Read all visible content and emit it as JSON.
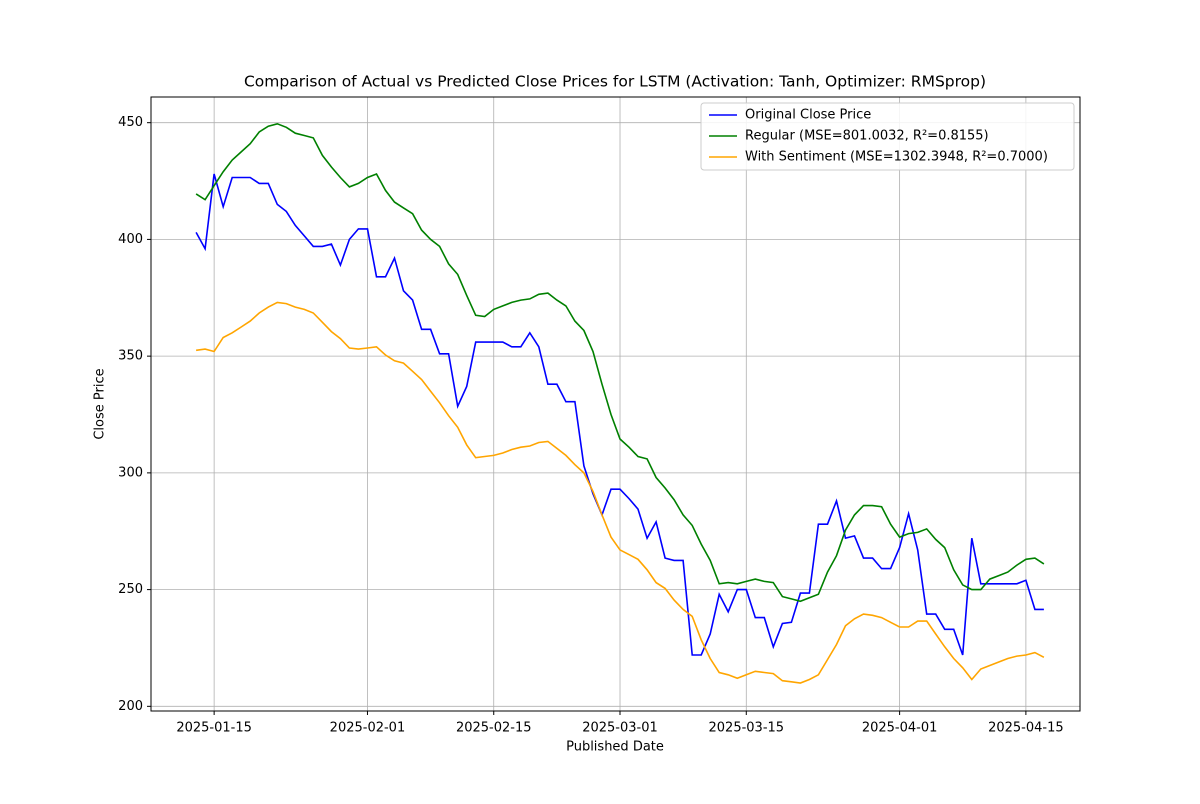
{
  "chart_data": {
    "type": "line",
    "title": "Comparison of Actual vs Predicted Close Prices for LSTM (Activation: Tanh, Optimizer: RMSprop)",
    "xlabel": "Published Date",
    "ylabel": "Close Price",
    "x": [
      "2025-01-13",
      "2025-01-14",
      "2025-01-15",
      "2025-01-16",
      "2025-01-17",
      "2025-01-18",
      "2025-01-19",
      "2025-01-20",
      "2025-01-21",
      "2025-01-22",
      "2025-01-23",
      "2025-01-24",
      "2025-01-25",
      "2025-01-26",
      "2025-01-27",
      "2025-01-28",
      "2025-01-29",
      "2025-01-30",
      "2025-01-31",
      "2025-02-01",
      "2025-02-02",
      "2025-02-03",
      "2025-02-04",
      "2025-02-05",
      "2025-02-06",
      "2025-02-07",
      "2025-02-08",
      "2025-02-09",
      "2025-02-10",
      "2025-02-11",
      "2025-02-12",
      "2025-02-13",
      "2025-02-14",
      "2025-02-15",
      "2025-02-16",
      "2025-02-17",
      "2025-02-18",
      "2025-02-19",
      "2025-02-20",
      "2025-02-21",
      "2025-02-22",
      "2025-02-23",
      "2025-02-24",
      "2025-02-25",
      "2025-02-26",
      "2025-02-27",
      "2025-02-28",
      "2025-03-01",
      "2025-03-02",
      "2025-03-03",
      "2025-03-04",
      "2025-03-05",
      "2025-03-06",
      "2025-03-07",
      "2025-03-08",
      "2025-03-09",
      "2025-03-10",
      "2025-03-11",
      "2025-03-12",
      "2025-03-13",
      "2025-03-14",
      "2025-03-15",
      "2025-03-16",
      "2025-03-17",
      "2025-03-18",
      "2025-03-19",
      "2025-03-20",
      "2025-03-21",
      "2025-03-22",
      "2025-03-23",
      "2025-03-24",
      "2025-03-25",
      "2025-03-26",
      "2025-03-27",
      "2025-03-28",
      "2025-03-29",
      "2025-03-30",
      "2025-03-31",
      "2025-04-01",
      "2025-04-02",
      "2025-04-03",
      "2025-04-04",
      "2025-04-05",
      "2025-04-06",
      "2025-04-07",
      "2025-04-08",
      "2025-04-09",
      "2025-04-10",
      "2025-04-11",
      "2025-04-12",
      "2025-04-13",
      "2025-04-14",
      "2025-04-15",
      "2025-04-16",
      "2025-04-17"
    ],
    "series": [
      {
        "name": "Original Close Price",
        "color": "#0000ff",
        "values": [
          403,
          396,
          428,
          414,
          426.5,
          426.5,
          426.5,
          424,
          424,
          415,
          412,
          406,
          401.5,
          397,
          397,
          398,
          389,
          400,
          404.5,
          404.5,
          384,
          384,
          392,
          378,
          374,
          361.5,
          361.5,
          351,
          351,
          328.5,
          337,
          356,
          356,
          356,
          356,
          354,
          354,
          360,
          354,
          338,
          338,
          330.5,
          330.5,
          303,
          291,
          282,
          293,
          293,
          289,
          284.5,
          272,
          279,
          263.5,
          262.5,
          262.5,
          222,
          222,
          231,
          248,
          240.5,
          250,
          250,
          238,
          238,
          225.5,
          235.5,
          236,
          248.5,
          248.5,
          278,
          278,
          288,
          272,
          273,
          263.5,
          263.5,
          259,
          259,
          268,
          282.5,
          267,
          239.5,
          239.5,
          233,
          233,
          222,
          272,
          252.5,
          252.5,
          252.5,
          252.5,
          252.5,
          254,
          241.5,
          241.5
        ]
      },
      {
        "name": "Regular (MSE=801.0032, R²=0.8155)",
        "color": "#008000",
        "values": [
          419.5,
          417,
          423,
          429,
          434,
          437.5,
          441,
          446,
          448.5,
          449.5,
          448,
          445.5,
          444.5,
          443.5,
          436,
          431,
          426.5,
          422.5,
          424,
          426.5,
          428,
          421,
          416,
          413.5,
          411,
          404,
          400,
          397,
          389.5,
          385,
          376,
          367.5,
          367,
          370,
          371.5,
          373,
          374,
          374.5,
          376.5,
          377,
          374,
          371.5,
          365,
          361,
          352,
          338,
          325,
          314.5,
          311,
          307,
          306,
          298,
          293.5,
          288.5,
          282,
          277.5,
          269.5,
          262.5,
          252.5,
          253,
          252.5,
          253.5,
          254.5,
          253.5,
          253,
          247,
          246,
          245,
          246.5,
          248,
          257.5,
          264.5,
          275.5,
          282,
          286,
          286,
          285.5,
          278,
          272.5,
          274,
          274.5,
          276,
          271.5,
          268,
          258.5,
          252,
          250,
          250,
          254.5,
          256,
          257.5,
          260.5,
          263,
          263.5,
          261
        ]
      },
      {
        "name": "With Sentiment (MSE=1302.3948, R²=0.7000)",
        "color": "#ffa500",
        "values": [
          352.5,
          353,
          352,
          358,
          360,
          362.5,
          365,
          368.5,
          371,
          373,
          372.5,
          371,
          370,
          368.5,
          364.5,
          360.5,
          357.5,
          353.5,
          353,
          353.5,
          354,
          350.5,
          348,
          347,
          343.5,
          340,
          335,
          330,
          324.5,
          319.5,
          312,
          306.5,
          307,
          307.5,
          308.5,
          310,
          311,
          311.5,
          313,
          313.5,
          310.5,
          307.5,
          303.5,
          300,
          292,
          282,
          272.5,
          267,
          265,
          263,
          258.5,
          253,
          250.5,
          245.5,
          241.5,
          238.5,
          228.5,
          220.5,
          214.5,
          213.5,
          212,
          213.5,
          215,
          214.5,
          214,
          211,
          210.5,
          210,
          211.5,
          213.5,
          220,
          226.5,
          234.5,
          237.5,
          239.5,
          239,
          238,
          236,
          234,
          234,
          236.5,
          236.5,
          231,
          225.5,
          220.5,
          216.5,
          211.5,
          216,
          217.5,
          219,
          220.5,
          221.5,
          222,
          223,
          221
        ]
      }
    ],
    "xlim": [
      "2025-01-08",
      "2025-04-21"
    ],
    "xticks": [
      "2025-01-15",
      "2025-02-01",
      "2025-02-15",
      "2025-03-01",
      "2025-03-15",
      "2025-04-01",
      "2025-04-15"
    ],
    "ylim": [
      198,
      461
    ],
    "yticks": [
      200,
      250,
      300,
      350,
      400,
      450
    ],
    "grid": true,
    "legend": "upper right"
  }
}
